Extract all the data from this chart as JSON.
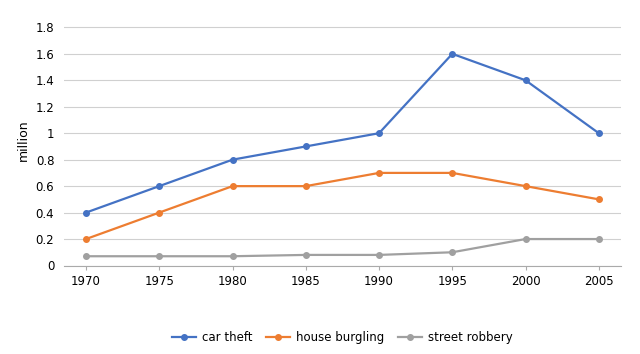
{
  "years": [
    1970,
    1975,
    1980,
    1985,
    1990,
    1995,
    2000,
    2005
  ],
  "car_theft": [
    0.4,
    0.6,
    0.8,
    0.9,
    1.0,
    1.6,
    1.4,
    1.0
  ],
  "house_burgling": [
    0.2,
    0.4,
    0.6,
    0.6,
    0.7,
    0.7,
    0.6,
    0.5
  ],
  "street_robbery": [
    0.07,
    0.07,
    0.07,
    0.08,
    0.08,
    0.1,
    0.2,
    0.2
  ],
  "car_theft_color": "#4472C4",
  "house_burgling_color": "#ED7D31",
  "street_robbery_color": "#A0A0A0",
  "ylabel": "million",
  "ylim": [
    0,
    1.9
  ],
  "yticks": [
    0,
    0.2,
    0.4,
    0.6,
    0.8,
    1.0,
    1.2,
    1.4,
    1.6,
    1.8
  ],
  "ytick_labels": [
    "0",
    "0.2",
    "0.4",
    "0.6",
    "0.8",
    "1",
    "1.2",
    "1.4",
    "1.6",
    "1.8"
  ],
  "legend_labels": [
    "car theft",
    "house burgling",
    "street robbery"
  ],
  "background_color": "#FFFFFF",
  "grid_color": "#D0D0D0",
  "marker": "o",
  "marker_size": 4,
  "line_width": 1.6,
  "label_fontsize": 9,
  "tick_fontsize": 8.5,
  "legend_fontsize": 8.5
}
